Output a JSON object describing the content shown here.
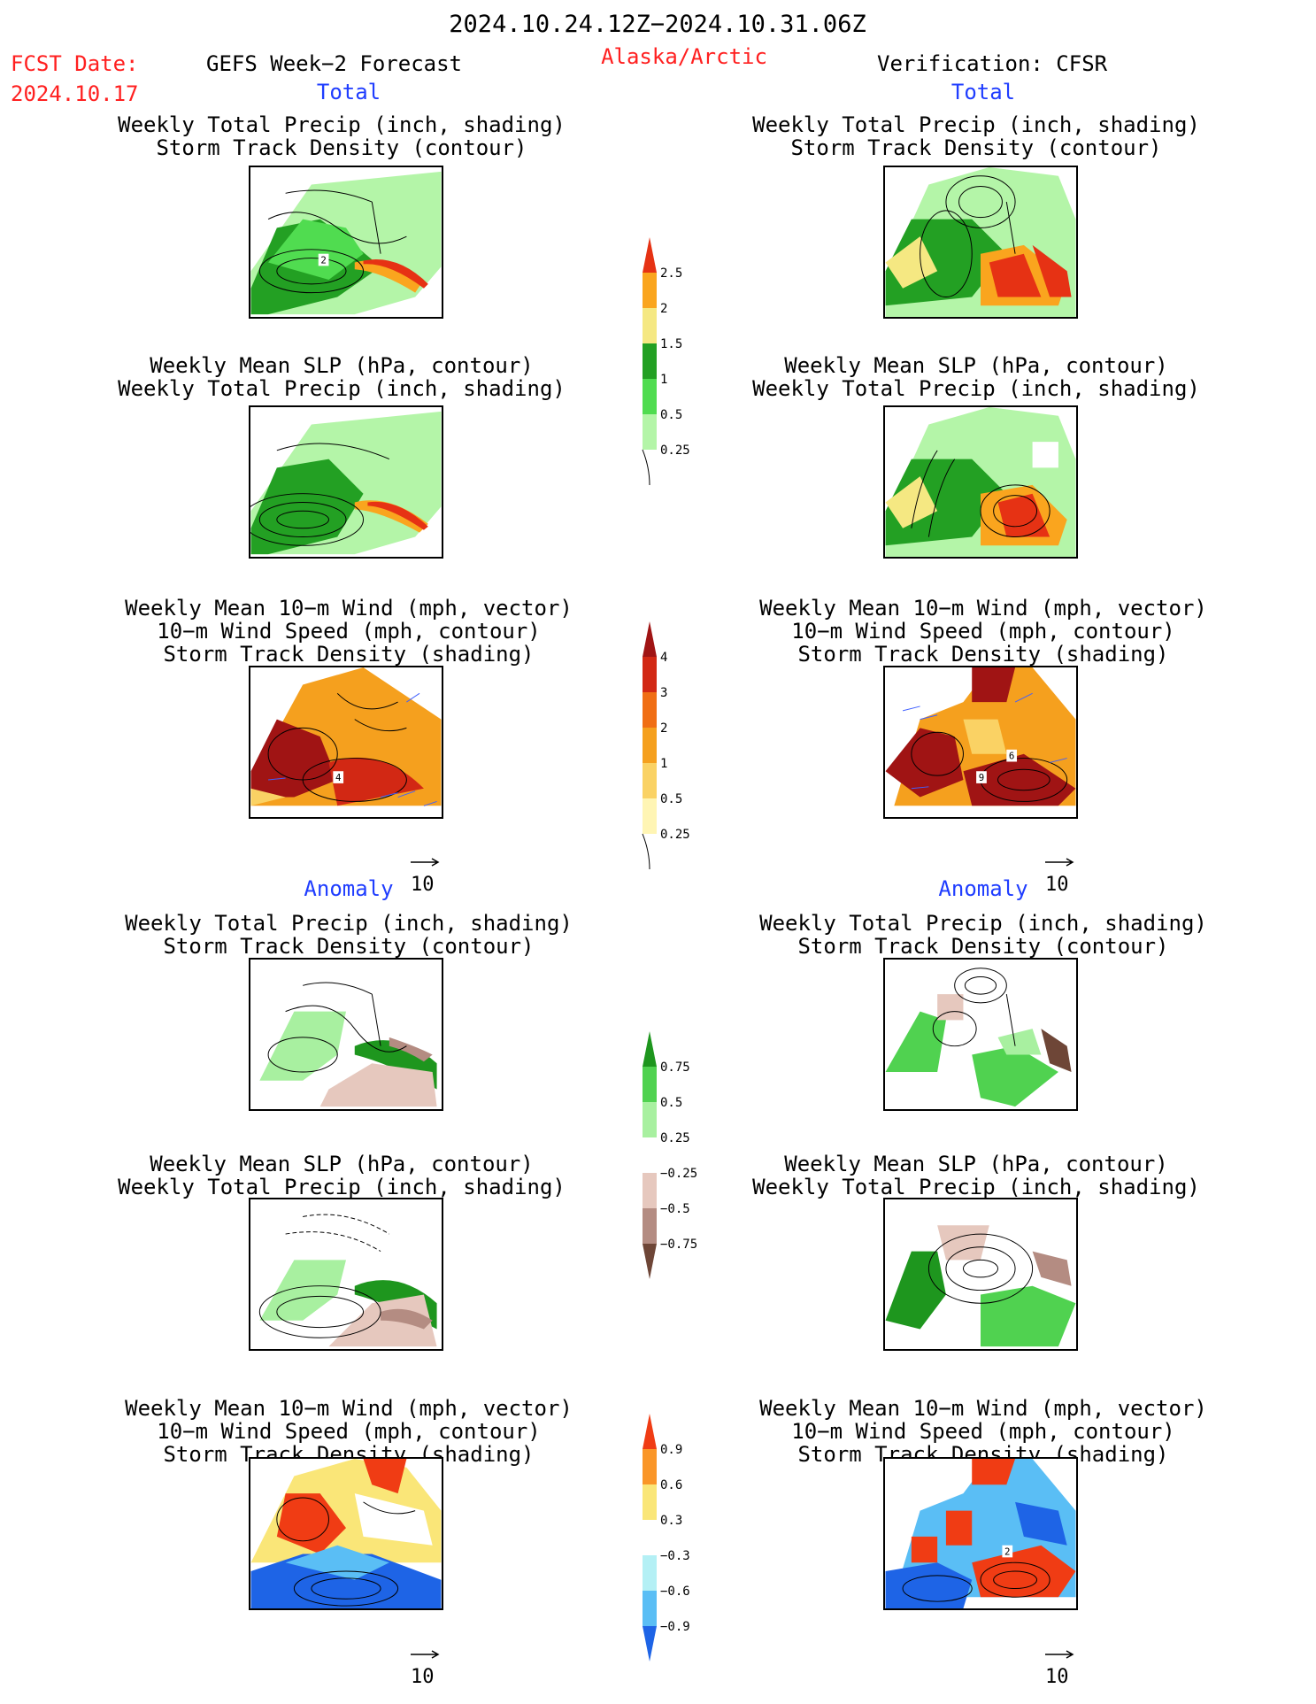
{
  "header": {
    "date_range": "2024.10.24.12Z−2024.10.31.06Z",
    "fcst_label": "FCST Date:",
    "fcst_date": "2024.10.17",
    "forecast_title": "GEFS Week−2 Forecast",
    "region": "Alaska/Arctic",
    "verification": "Verification: CFSR"
  },
  "sections": {
    "total_left": "Total",
    "total_right": "Total",
    "anomaly_left": "Anomaly",
    "anomaly_right": "Anomaly"
  },
  "titles": {
    "precip_track": [
      "Weekly Total Precip (inch, shading)",
      "Storm Track Density (contour)"
    ],
    "slp_precip": [
      "Weekly Mean SLP (hPa, contour)",
      "Weekly Total Precip (inch, shading)"
    ],
    "wind_track": [
      "Weekly Mean 10−m Wind (mph, vector)",
      "10−m Wind Speed (mph, contour)",
      "Storm Track Density (shading)"
    ]
  },
  "vector_ref": "10",
  "contour_labels": {
    "fcst_total_precip": "2",
    "fcst_total_wind": "4",
    "cfsr_total_wind_a": "6",
    "cfsr_total_wind_b": "9",
    "cfsr_anom_wind": "2"
  },
  "colors": {
    "header_red": "#ff2020",
    "section_blue": "#1f3dff"
  },
  "chart_data": [
    {
      "type": "heatmap",
      "name": "colorbar-total-precip",
      "levels": [
        "0.25",
        "0.5",
        "1",
        "1.5",
        "2",
        "2.5"
      ],
      "colors": [
        "#b4f5a8",
        "#50dc50",
        "#23a023",
        "#f5e882",
        "#faa51e",
        "#e63214"
      ]
    },
    {
      "type": "heatmap",
      "name": "colorbar-total-storm-track",
      "levels": [
        "0.25",
        "0.5",
        "1",
        "2",
        "3",
        "4"
      ],
      "colors": [
        "#fff5b4",
        "#fad264",
        "#f5a01e",
        "#f06e14",
        "#d22814",
        "#a01414"
      ]
    },
    {
      "type": "heatmap",
      "name": "colorbar-anomaly-precip",
      "levels": [
        "0.75",
        "0.5",
        "0.25",
        "−0.25",
        "−0.5",
        "−0.75"
      ],
      "colors": [
        "#1e961e",
        "#50d250",
        "#a8f0a0",
        "#ffffff",
        "#e6c8be",
        "#b48c82",
        "#6e4637"
      ]
    },
    {
      "type": "heatmap",
      "name": "colorbar-anomaly-storm-track",
      "levels": [
        "0.9",
        "0.6",
        "0.3",
        "−0.3",
        "−0.6",
        "−0.9"
      ],
      "colors": [
        "#f03c14",
        "#fa9628",
        "#fae678",
        "#ffffff",
        "#b4f0f5",
        "#5abef5",
        "#1e64e6"
      ]
    }
  ]
}
